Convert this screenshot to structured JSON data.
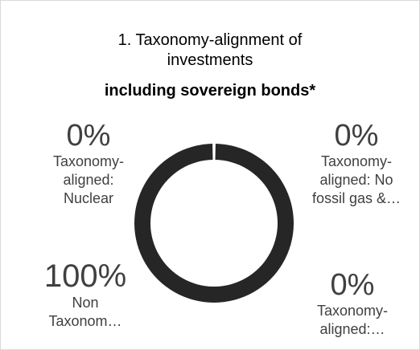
{
  "title": {
    "line1": "1. Taxonomy-alignment of",
    "line2": "investments",
    "line3": "including sovereign bonds*"
  },
  "labels": {
    "nuclear": {
      "pct": "0%",
      "l1": "Taxonomy-",
      "l2": "aligned:",
      "l3": "Nuclear"
    },
    "no_fossil": {
      "pct": "0%",
      "l1": "Taxonomy-",
      "l2": "aligned: No",
      "l3": "fossil gas &…"
    },
    "non_taxonomy": {
      "pct": "100%",
      "l1": "Non",
      "l2": "Taxonom…"
    },
    "aligned_other": {
      "pct": "0%",
      "l1": "Taxonomy-",
      "l2": "aligned:…"
    }
  },
  "chart_data": {
    "type": "pie",
    "title": "1. Taxonomy-alignment of investments including sovereign bonds*",
    "categories": [
      "Taxonomy-aligned: Nuclear",
      "Taxonomy-aligned: No fossil gas &…",
      "Taxonomy-aligned:…",
      "Non Taxonom…"
    ],
    "values": [
      0,
      0,
      0,
      100
    ],
    "unit": "%",
    "donut": true,
    "colors": [
      "#262626",
      "#262626",
      "#262626",
      "#262626"
    ]
  },
  "colors": {
    "ring": "#262626",
    "background": "#ffffff"
  }
}
